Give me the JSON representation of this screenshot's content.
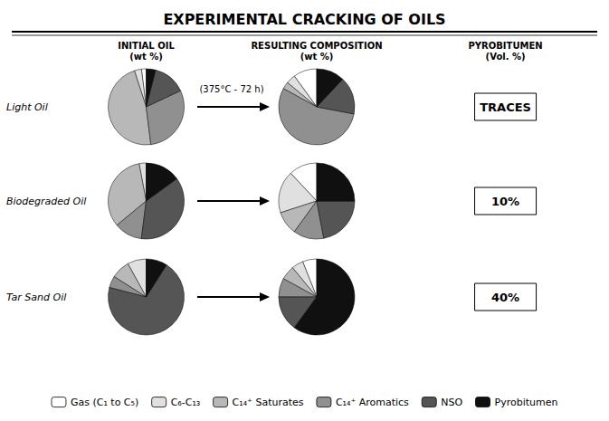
{
  "chart_data": [
    {
      "type": "pie",
      "title": "EXPERIMENTAL CRACKING OF OILS",
      "legend": "bottom",
      "annotations": [
        "INITIAL OIL\n(wt %)",
        "RESULTING COMPOSITION\n(wt %)",
        "PYROBITUMEN\n(Vol. %)",
        "Light Oil",
        "Biodegraded Oil",
        "Tar Sand Oil",
        "(375°C - 72 h)",
        "TRACES",
        "10%",
        "40%"
      ],
      "categories": [
        "Gas (C₁ to C₅)",
        "C₆-C₁₃",
        "C₁₄⁺ Saturates",
        "C₁₄⁺ Aromatics",
        "NSO",
        "Pyrobitumen"
      ],
      "colors": [
        "#ffffff",
        "#e0e0e0",
        "#b8b8b8",
        "#909090",
        "#555555",
        "#101010"
      ],
      "values": [
        2,
        3,
        47,
        30,
        14,
        4
      ]
    },
    {
      "type": "pie",
      "categories": [
        "Gas (C₁ to C₅)",
        "C₆-C₁₃",
        "C₁₄⁺ Saturates",
        "C₁₄⁺ Aromatics",
        "NSO",
        "Pyrobitumen"
      ],
      "colors": [
        "#ffffff",
        "#e0e0e0",
        "#b8b8b8",
        "#909090",
        "#555555",
        "#101010"
      ],
      "values": [
        10,
        4,
        3,
        55,
        16,
        12
      ]
    },
    {
      "type": "pie",
      "categories": [
        "Gas (C₁ to C₅)",
        "C₆-C₁₃",
        "C₁₄⁺ Saturates",
        "C₁₄⁺ Aromatics",
        "NSO",
        "Pyrobitumen"
      ],
      "colors": [
        "#ffffff",
        "#e0e0e0",
        "#b8b8b8",
        "#909090",
        "#555555",
        "#101010"
      ],
      "values": [
        0,
        3,
        33,
        12,
        37,
        15
      ]
    },
    {
      "type": "pie",
      "categories": [
        "Gas (C₁ to C₅)",
        "C₆-C₁₃",
        "C₁₄⁺ Saturates",
        "C₁₄⁺ Aromatics",
        "NSO",
        "Pyrobitumen"
      ],
      "colors": [
        "#ffffff",
        "#e0e0e0",
        "#b8b8b8",
        "#909090",
        "#555555",
        "#101010"
      ],
      "values": [
        12,
        18,
        10,
        13,
        22,
        25
      ]
    },
    {
      "type": "pie",
      "categories": [
        "Gas (C₁ to C₅)",
        "C₆-C₁₃",
        "C₁₄⁺ Saturates",
        "C₁₄⁺ Aromatics",
        "NSO",
        "Pyrobitumen"
      ],
      "colors": [
        "#ffffff",
        "#e0e0e0",
        "#b8b8b8",
        "#909090",
        "#555555",
        "#101010"
      ],
      "values": [
        0,
        8,
        8,
        5,
        70,
        9
      ]
    },
    {
      "type": "pie",
      "categories": [
        "Gas (C₁ to C₅)",
        "C₆-C₁₃",
        "C₁₄⁺ Saturates",
        "C₁₄⁺ Aromatics",
        "NSO",
        "Pyrobitumen"
      ],
      "colors": [
        "#ffffff",
        "#e0e0e0",
        "#b8b8b8",
        "#909090",
        "#555555",
        "#101010"
      ],
      "values": [
        6,
        5,
        6,
        8,
        15,
        60
      ]
    }
  ]
}
